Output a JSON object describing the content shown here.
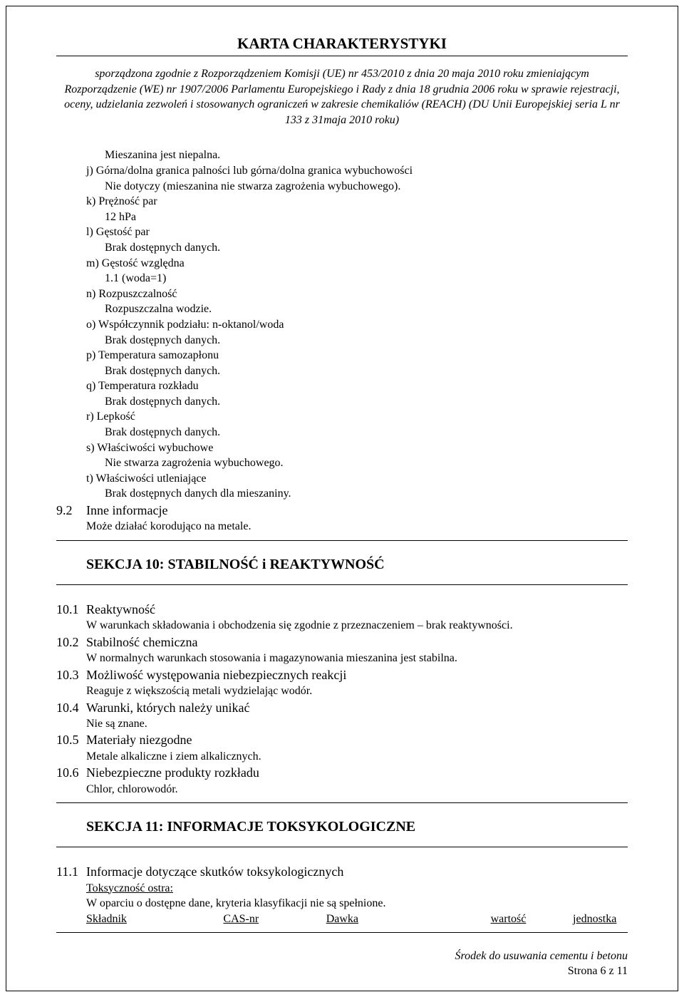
{
  "title": "KARTA CHARAKTERYSTYKI",
  "header": {
    "line1": "sporządzona zgodnie z Rozporządzeniem Komisji (UE) nr 453/2010 z dnia 20 maja 2010 roku zmieniającym",
    "line2": "Rozporządzenie (WE) nr 1907/2006 Parlamentu Europejskiego i Rady z dnia 18 grudnia 2006 roku w sprawie rejestracji,",
    "line3": "oceny, udzielania zezwoleń i stosowanych ograniczeń w zakresie chemikaliów (REACH) (DU Unii Europejskiej seria L nr",
    "line4": "133 z 31maja 2010 roku)"
  },
  "body": {
    "mix_nonflammable": "Mieszanina jest niepalna.",
    "j_label": "j) Górna/dolna granica palności lub górna/dolna granica wybuchowości",
    "j_text": "Nie dotyczy (mieszanina nie stwarza zagrożenia wybuchowego).",
    "k_label": "k) Prężność par",
    "k_text": "12 hPa",
    "l_label": "l) Gęstość par",
    "l_text": "Brak dostępnych danych.",
    "m_label": "m)  Gęstość względna",
    "m_text": "1.1 (woda=1)",
    "n_label": "n) Rozpuszczalność",
    "n_text": "Rozpuszczalna wodzie.",
    "o_label": "o) Współczynnik podziału: n-oktanol/woda",
    "o_text": "Brak dostępnych danych.",
    "p_label": "p) Temperatura samozapłonu",
    "p_text": "Brak dostępnych danych.",
    "q_label": "q) Temperatura rozkładu",
    "q_text": "Brak dostępnych danych.",
    "r_label": "r) Lepkość",
    "r_text": "Brak dostępnych danych.",
    "s_label": "s) Właściwości wybuchowe",
    "s_text": "Nie stwarza zagrożenia wybuchowego.",
    "t_label": "t) Właściwości utleniające",
    "t_text": "Brak dostępnych danych dla mieszaniny.",
    "s9_2_num": "9.2",
    "s9_2_title": "Inne informacje",
    "s9_2_text": "Może działać korodująco na metale."
  },
  "section10": {
    "heading": "SEKCJA 10:    STABILNOŚĆ i REAKTYWNOŚĆ",
    "s1_num": "10.1",
    "s1_title": "Reaktywność",
    "s1_text": "W warunkach składowania i obchodzenia się zgodnie z przeznaczeniem – brak reaktywności.",
    "s2_num": "10.2",
    "s2_title": "Stabilność chemiczna",
    "s2_text": "W normalnych warunkach stosowania i magazynowania mieszanina jest stabilna.",
    "s3_num": "10.3",
    "s3_title": "Możliwość występowania niebezpiecznych reakcji",
    "s3_text": "Reaguje z większością metali wydzielając wodór.",
    "s4_num": "10.4",
    "s4_title": "Warunki, których należy unikać",
    "s4_text": "Nie są znane.",
    "s5_num": "10.5",
    "s5_title": "Materiały niezgodne",
    "s5_text": "Metale alkaliczne i ziem alkalicznych.",
    "s6_num": "10.6",
    "s6_title": "Niebezpieczne produkty rozkładu",
    "s6_text": "Chlor, chlorowodór."
  },
  "section11": {
    "heading": "SEKCJA 11:    INFORMACJE TOKSYKOLOGICZNE",
    "s1_num": "11.1",
    "s1_title": "Informacje dotyczące skutków toksykologicznych",
    "tox_label": "Toksyczność ostra:",
    "tox_text": "W oparciu o dostępne dane, kryteria klasyfikacji nie są spełnione.",
    "col_a": "Składnik",
    "col_b": "CAS-nr",
    "col_c": "Dawka",
    "col_d": "wartość",
    "col_e": "jednostka"
  },
  "footer": {
    "product": "Środek do usuwania cementu i betonu",
    "page": "Strona 6  z  11"
  }
}
